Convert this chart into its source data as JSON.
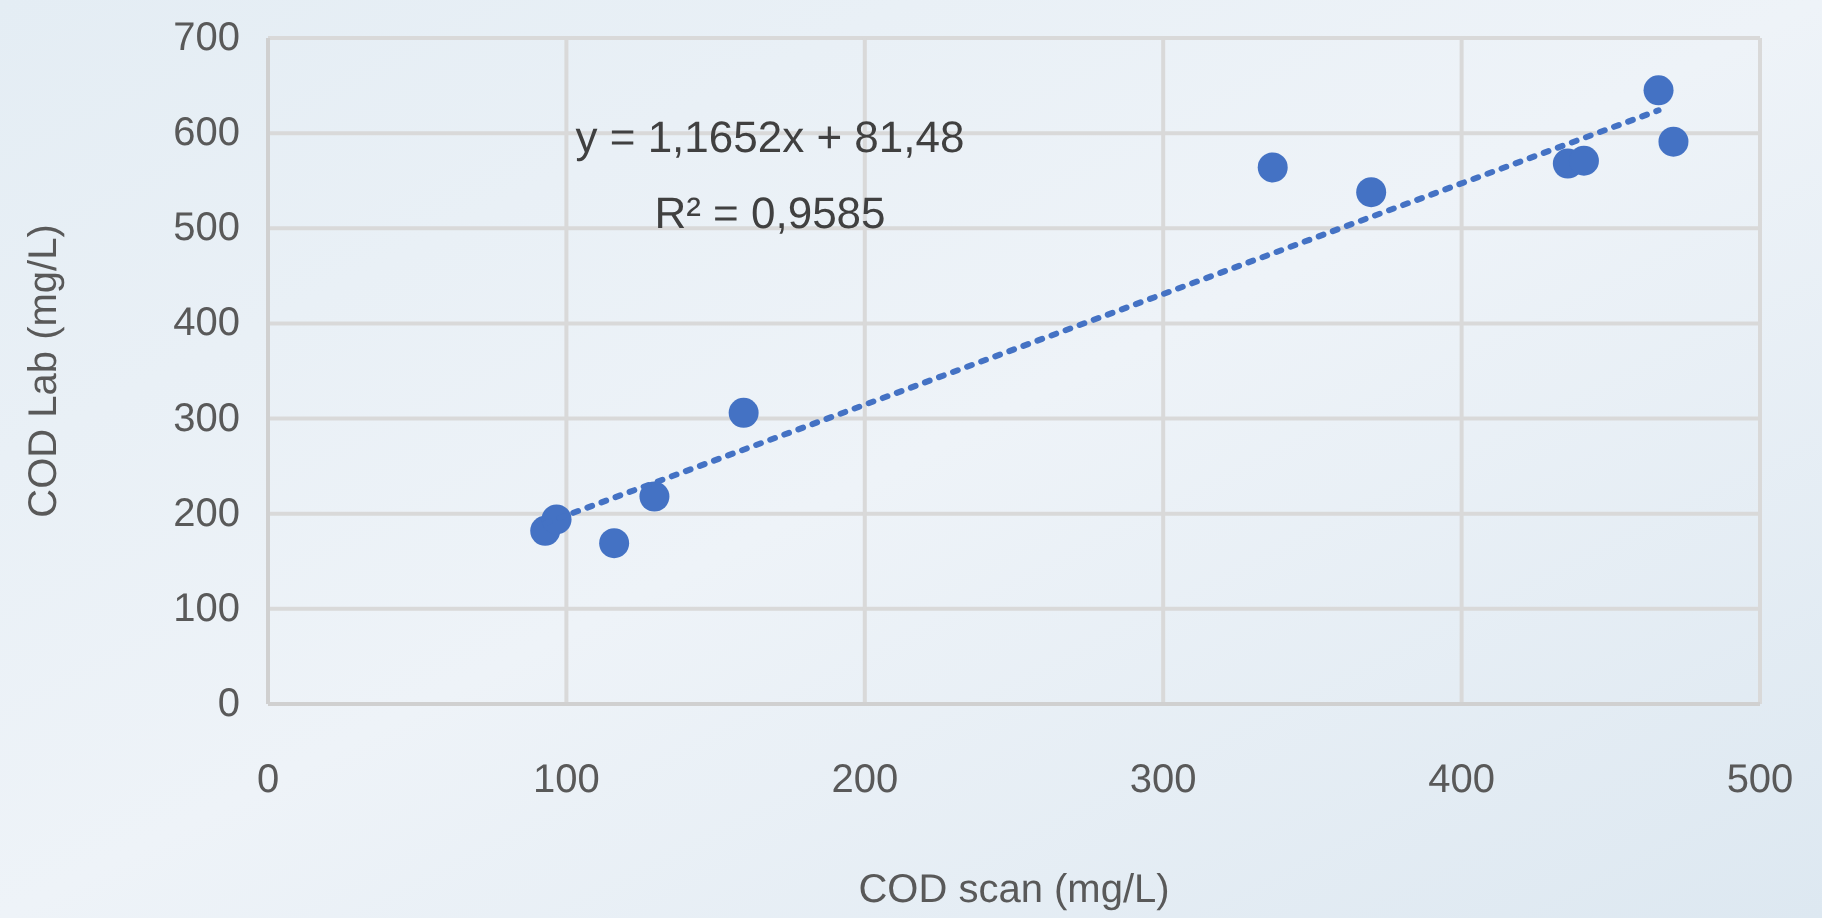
{
  "chart_data": {
    "type": "scatter",
    "xlabel": "COD scan (mg/L)",
    "ylabel": "COD Lab (mg/L)",
    "annotations": [
      "y = 1,1652x + 81,48",
      "R² = 0,9585"
    ],
    "xlim": [
      0,
      500
    ],
    "ylim": [
      0,
      700
    ],
    "xticks": [
      0,
      100,
      200,
      300,
      400,
      500
    ],
    "yticks": [
      0,
      100,
      200,
      300,
      400,
      500,
      600,
      700
    ],
    "grid": true,
    "marker": "circle",
    "series": [
      {
        "color": "#4472c4",
        "x": [
          92.9,
          96.7,
          116,
          129.5,
          159.4,
          336.7,
          369.7,
          435.6,
          441,
          466,
          471
        ],
        "values": [
          182,
          194,
          169,
          218,
          306,
          564,
          538,
          568,
          571,
          645,
          591
        ]
      },
      {
        "type": "line",
        "color": "#4472c4",
        "line_style": "dotted",
        "marker": "none",
        "x": [
          92.9,
          466
        ],
        "values": [
          190,
          624
        ]
      }
    ]
  }
}
